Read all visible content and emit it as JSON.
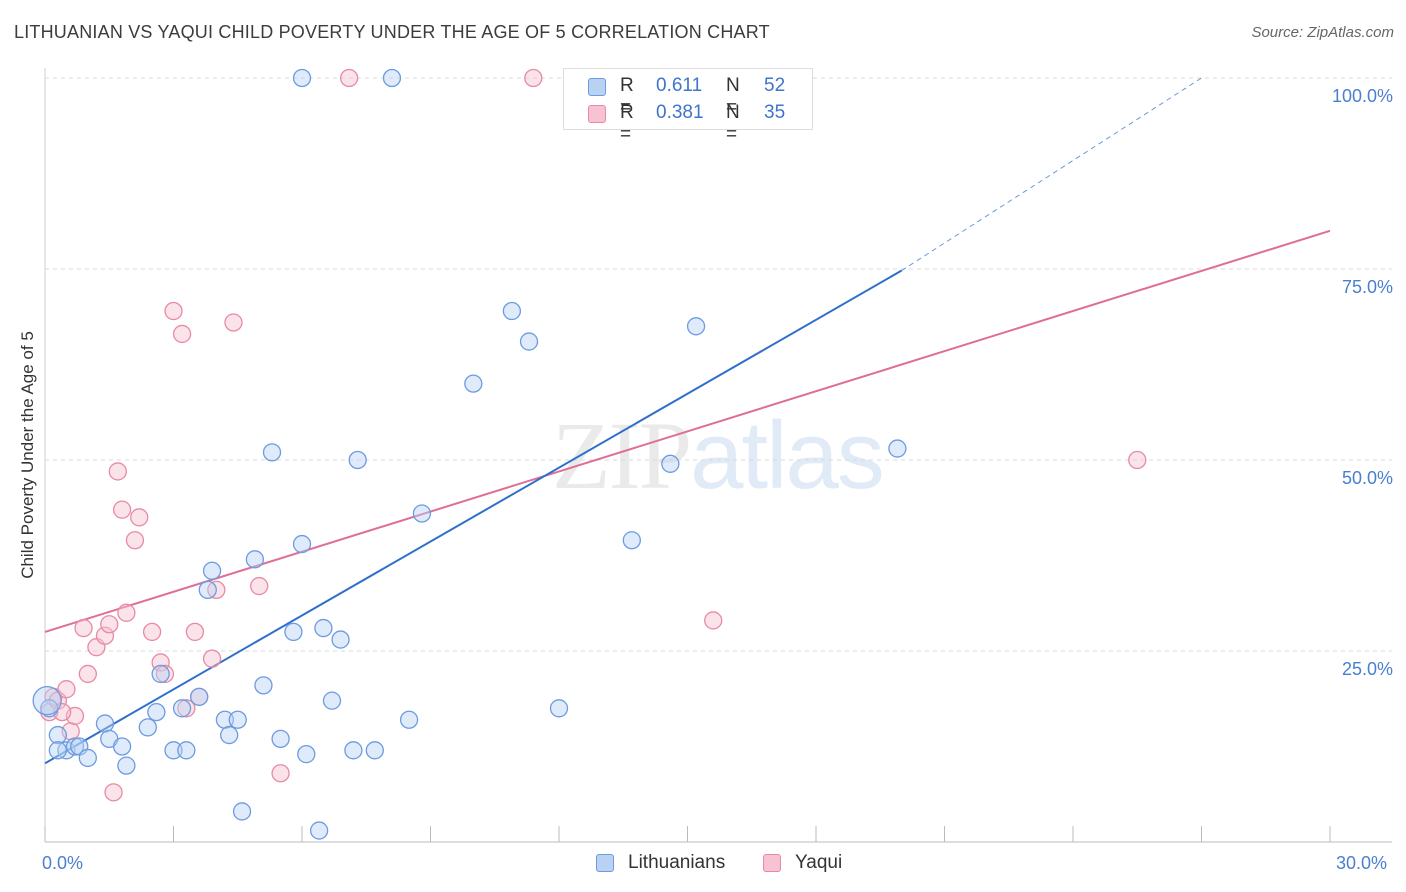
{
  "title": "LITHUANIAN VS YAQUI CHILD POVERTY UNDER THE AGE OF 5 CORRELATION CHART",
  "source": "Source: ZipAtlas.com",
  "watermark": {
    "part1": "ZIP",
    "part2": "atlas"
  },
  "colors": {
    "blue_fill": "#b9d2f3",
    "blue_stroke": "#6d9be0",
    "blue_line": "#2f6fcc",
    "pink_fill": "#f7c2d1",
    "pink_stroke": "#e88aa7",
    "pink_line": "#df6e97",
    "grid": "#d8d8d8",
    "tick_text": "#4a7fd0"
  },
  "legend": {
    "rows": [
      {
        "r_key": "R =",
        "r_value": "0.611",
        "n_key": "N =",
        "n_value": "52"
      },
      {
        "r_key": "R =",
        "r_value": "0.381",
        "n_key": "N =",
        "n_value": "35"
      }
    ],
    "bottom": [
      "Lithuanians",
      "Yaqui"
    ]
  },
  "chart_data": {
    "type": "scatter",
    "title": "LITHUANIAN VS YAQUI CHILD POVERTY UNDER THE AGE OF 5 CORRELATION CHART",
    "xlabel": "",
    "ylabel": "Child Poverty Under the Age of 5",
    "xlim": [
      0,
      30
    ],
    "ylim": [
      0,
      100
    ],
    "x_ticks": [
      "0.0%",
      "30.0%"
    ],
    "y_ticks": [
      {
        "value": 25,
        "label": "25.0%"
      },
      {
        "value": 50,
        "label": "50.0%"
      },
      {
        "value": 75,
        "label": "75.0%"
      },
      {
        "value": 100,
        "label": "100.0%"
      }
    ],
    "grid": true,
    "legend_position": "top-center",
    "series": [
      {
        "name": "Lithuanians",
        "color": "#6d9be0",
        "R": 0.611,
        "N": 52,
        "trend": {
          "x": [
            0,
            20.0
          ],
          "y": [
            10.3,
            74.8
          ],
          "dashed_to": [
            27.0,
            100
          ]
        },
        "points": [
          [
            0.1,
            17.5
          ],
          [
            0.3,
            14.0
          ],
          [
            0.5,
            12.0
          ],
          [
            0.7,
            12.5
          ],
          [
            0.8,
            12.5
          ],
          [
            1.0,
            11.0
          ],
          [
            1.4,
            15.5
          ],
          [
            1.5,
            13.5
          ],
          [
            1.9,
            10.0
          ],
          [
            2.4,
            15.0
          ],
          [
            2.6,
            17.0
          ],
          [
            2.7,
            22.0
          ],
          [
            3.0,
            12.0
          ],
          [
            3.2,
            17.5
          ],
          [
            3.3,
            12.0
          ],
          [
            3.6,
            19.0
          ],
          [
            3.8,
            33.0
          ],
          [
            3.9,
            35.5
          ],
          [
            4.2,
            16.0
          ],
          [
            4.3,
            14.0
          ],
          [
            4.5,
            16.0
          ],
          [
            4.6,
            4.0
          ],
          [
            4.9,
            37.0
          ],
          [
            5.1,
            20.5
          ],
          [
            5.3,
            51.0
          ],
          [
            5.5,
            13.5
          ],
          [
            5.8,
            27.5
          ],
          [
            6.0,
            39.0
          ],
          [
            6.1,
            11.5
          ],
          [
            6.4,
            1.5
          ],
          [
            6.5,
            28.0
          ],
          [
            6.7,
            18.5
          ],
          [
            6.9,
            26.5
          ],
          [
            7.2,
            12.0
          ],
          [
            7.3,
            50.0
          ],
          [
            7.7,
            12.0
          ],
          [
            8.5,
            16.0
          ],
          [
            8.8,
            43.0
          ],
          [
            10.0,
            60.0
          ],
          [
            10.9,
            69.5
          ],
          [
            11.3,
            65.5
          ],
          [
            12.0,
            17.5
          ],
          [
            13.7,
            39.5
          ],
          [
            14.6,
            49.5
          ],
          [
            15.2,
            67.5
          ],
          [
            19.9,
            51.5
          ],
          [
            6.0,
            100.0
          ],
          [
            8.1,
            100.0
          ],
          [
            12.7,
            100.0
          ],
          [
            0.05,
            18.5
          ],
          [
            1.8,
            12.5
          ],
          [
            0.3,
            12.0
          ]
        ]
      },
      {
        "name": "Yaqui",
        "color": "#e88aa7",
        "R": 0.381,
        "N": 35,
        "trend": {
          "x": [
            0,
            30.0
          ],
          "y": [
            27.5,
            80.0
          ]
        },
        "points": [
          [
            0.1,
            17.0
          ],
          [
            0.2,
            19.0
          ],
          [
            0.3,
            18.5
          ],
          [
            0.5,
            20.0
          ],
          [
            0.6,
            14.5
          ],
          [
            0.7,
            16.5
          ],
          [
            0.9,
            28.0
          ],
          [
            1.0,
            22.0
          ],
          [
            1.2,
            25.5
          ],
          [
            1.4,
            27.0
          ],
          [
            1.5,
            28.5
          ],
          [
            1.7,
            48.5
          ],
          [
            1.8,
            43.5
          ],
          [
            1.9,
            30.0
          ],
          [
            2.1,
            39.5
          ],
          [
            2.2,
            42.5
          ],
          [
            2.5,
            27.5
          ],
          [
            2.7,
            23.5
          ],
          [
            2.8,
            22.0
          ],
          [
            3.0,
            69.5
          ],
          [
            3.2,
            66.5
          ],
          [
            3.3,
            17.5
          ],
          [
            3.5,
            27.5
          ],
          [
            3.6,
            19.0
          ],
          [
            3.9,
            24.0
          ],
          [
            4.0,
            33.0
          ],
          [
            4.4,
            68.0
          ],
          [
            5.0,
            33.5
          ],
          [
            5.5,
            9.0
          ],
          [
            7.1,
            100.0
          ],
          [
            11.4,
            100.0
          ],
          [
            15.6,
            29.0
          ],
          [
            25.5,
            50.0
          ],
          [
            1.6,
            6.5
          ],
          [
            0.4,
            17.0
          ]
        ]
      }
    ]
  }
}
